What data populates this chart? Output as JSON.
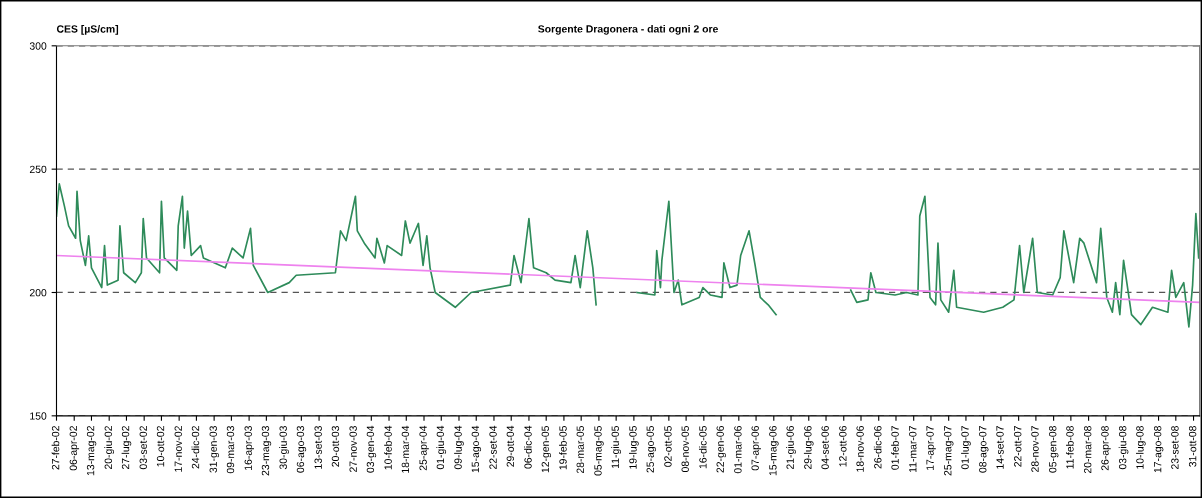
{
  "chart_data": {
    "type": "line",
    "title": "Sorgente Dragonera - dati ogni 2 ore",
    "ylabel": "CES [µS/cm]",
    "ylim": [
      150,
      300
    ],
    "yticks": [
      150,
      200,
      250,
      300
    ],
    "grid": "y",
    "xlim": [
      "2002-02-27",
      "2008-11-13"
    ],
    "xticks": [
      {
        "value": "2002-02-27",
        "label": "27-feb-02"
      },
      {
        "value": "2002-04-06",
        "label": "06-apr-02"
      },
      {
        "value": "2002-05-13",
        "label": "13-mag-02"
      },
      {
        "value": "2002-06-20",
        "label": "20-giu-02"
      },
      {
        "value": "2002-07-27",
        "label": "27-lug-02"
      },
      {
        "value": "2002-09-03",
        "label": "03-set-02"
      },
      {
        "value": "2002-10-10",
        "label": "10-ott-02"
      },
      {
        "value": "2002-11-17",
        "label": "17-nov-02"
      },
      {
        "value": "2002-12-24",
        "label": "24-dic-02"
      },
      {
        "value": "2003-01-31",
        "label": "31-gen-03"
      },
      {
        "value": "2003-03-09",
        "label": "09-mar-03"
      },
      {
        "value": "2003-04-16",
        "label": "16-apr-03"
      },
      {
        "value": "2003-05-23",
        "label": "23-mag-03"
      },
      {
        "value": "2003-06-30",
        "label": "30-giu-03"
      },
      {
        "value": "2003-08-06",
        "label": "06-ago-03"
      },
      {
        "value": "2003-09-13",
        "label": "13-set-03"
      },
      {
        "value": "2003-10-20",
        "label": "20-ott-03"
      },
      {
        "value": "2003-11-27",
        "label": "27-nov-03"
      },
      {
        "value": "2004-01-03",
        "label": "03-gen-04"
      },
      {
        "value": "2004-02-10",
        "label": "10-feb-04"
      },
      {
        "value": "2004-03-18",
        "label": "18-mar-04"
      },
      {
        "value": "2004-04-25",
        "label": "25-apr-04"
      },
      {
        "value": "2004-06-01",
        "label": "01-giu-04"
      },
      {
        "value": "2004-07-09",
        "label": "09-lug-04"
      },
      {
        "value": "2004-08-15",
        "label": "15-ago-04"
      },
      {
        "value": "2004-09-22",
        "label": "22-set-04"
      },
      {
        "value": "2004-10-29",
        "label": "29-ott-04"
      },
      {
        "value": "2004-12-06",
        "label": "06-dic-04"
      },
      {
        "value": "2005-01-12",
        "label": "12-gen-05"
      },
      {
        "value": "2005-02-19",
        "label": "19-feb-05"
      },
      {
        "value": "2005-03-28",
        "label": "28-mar-05"
      },
      {
        "value": "2005-05-05",
        "label": "05-mag-05"
      },
      {
        "value": "2005-06-11",
        "label": "11-giu-05"
      },
      {
        "value": "2005-07-19",
        "label": "19-lug-05"
      },
      {
        "value": "2005-08-25",
        "label": "25-ago-05"
      },
      {
        "value": "2005-10-02",
        "label": "02-ott-05"
      },
      {
        "value": "2005-11-08",
        "label": "08-nov-05"
      },
      {
        "value": "2005-12-16",
        "label": "16-dic-05"
      },
      {
        "value": "2006-01-22",
        "label": "22-gen-06"
      },
      {
        "value": "2006-03-01",
        "label": "01-mar-06"
      },
      {
        "value": "2006-04-07",
        "label": "07-apr-06"
      },
      {
        "value": "2006-05-15",
        "label": "15-mag-06"
      },
      {
        "value": "2006-06-21",
        "label": "21-giu-06"
      },
      {
        "value": "2006-07-29",
        "label": "29-lug-06"
      },
      {
        "value": "2006-09-04",
        "label": "04-set-06"
      },
      {
        "value": "2006-10-12",
        "label": "12-ott-06"
      },
      {
        "value": "2006-11-18",
        "label": "18-nov-06"
      },
      {
        "value": "2006-12-26",
        "label": "26-dic-06"
      },
      {
        "value": "2007-02-01",
        "label": "01-feb-07"
      },
      {
        "value": "2007-03-11",
        "label": "11-mar-07"
      },
      {
        "value": "2007-04-17",
        "label": "17-apr-07"
      },
      {
        "value": "2007-05-25",
        "label": "25-mag-07"
      },
      {
        "value": "2007-07-01",
        "label": "01-lug-07"
      },
      {
        "value": "2007-08-08",
        "label": "08-ago-07"
      },
      {
        "value": "2007-09-14",
        "label": "14-set-07"
      },
      {
        "value": "2007-10-22",
        "label": "22-ott-07"
      },
      {
        "value": "2007-11-28",
        "label": "28-nov-07"
      },
      {
        "value": "2008-01-05",
        "label": "05-gen-08"
      },
      {
        "value": "2008-02-11",
        "label": "11-feb-08"
      },
      {
        "value": "2008-03-20",
        "label": "20-mar-08"
      },
      {
        "value": "2008-04-26",
        "label": "26-apr-08"
      },
      {
        "value": "2008-06-03",
        "label": "03-giu-08"
      },
      {
        "value": "2008-07-10",
        "label": "10-lug-08"
      },
      {
        "value": "2008-08-17",
        "label": "17-ago-08"
      },
      {
        "value": "2008-09-23",
        "label": "23-set-08"
      },
      {
        "value": "2008-10-31",
        "label": "31-ott-08"
      }
    ],
    "series": [
      {
        "color": "#2e8b5a",
        "x": [
          "2002-02-27",
          "2002-03-05",
          "2002-03-16",
          "2002-03-25",
          "2002-04-09",
          "2002-04-12",
          "2002-04-19",
          "2002-04-30",
          "2002-05-07",
          "2002-05-13",
          "2002-06-04",
          "2002-06-10",
          "2002-06-16",
          "2002-07-09",
          "2002-07-13",
          "2002-07-21",
          "2002-08-15",
          "2002-08-28",
          "2002-09-01",
          "2002-09-08",
          "2002-10-06",
          "2002-10-10",
          "2002-10-16",
          "2002-11-12",
          "2002-11-15",
          "2002-11-24",
          "2002-11-28",
          "2002-12-05",
          "2002-12-13",
          "2003-01-02",
          "2003-01-08",
          "2003-02-24",
          "2003-03-11",
          "2003-04-03",
          "2003-04-19",
          "2003-04-25",
          "2003-05-26",
          "2003-07-11",
          "2003-07-26",
          "2003-10-18",
          "2003-10-29",
          "2003-11-10",
          "2003-11-30",
          "2003-12-04",
          "2003-12-19",
          "2004-01-11",
          "2004-01-15",
          "2004-01-31",
          "2004-02-06",
          "2004-03-08",
          "2004-03-16",
          "2004-03-26",
          "2004-04-04",
          "2004-04-13",
          "2004-04-23",
          "2004-05-01",
          "2004-05-08",
          "2004-05-19",
          "2004-07-01",
          "2004-08-04",
          "2004-10-27",
          "2004-11-04",
          "2004-11-19",
          "2004-12-06",
          "2004-12-16",
          "2005-01-12",
          "2005-01-31",
          "2005-03-06",
          "2005-03-15",
          "2005-03-26",
          "2005-04-10",
          "2005-04-22",
          "2005-04-29",
          "2005-06-10",
          "2005-07-26",
          "2005-09-02",
          "2005-09-06",
          "2005-09-14",
          "2005-09-17",
          "2005-10-02",
          "2005-10-13",
          "2005-10-22",
          "2005-10-30",
          "2005-12-06",
          "2005-12-14",
          "2005-12-30",
          "2006-01-24",
          "2006-01-28",
          "2006-02-10",
          "2006-02-25",
          "2006-03-05",
          "2006-03-23",
          "2006-04-05",
          "2006-04-16",
          "2006-05-03",
          "2006-05-20",
          "2006-08-20",
          "2006-10-27",
          "2006-11-09",
          "2006-12-03",
          "2006-12-09",
          "2006-12-20",
          "2007-01-30",
          "2007-02-24",
          "2007-03-20",
          "2007-03-24",
          "2007-04-04",
          "2007-04-10",
          "2007-04-15",
          "2007-04-27",
          "2007-05-02",
          "2007-05-08",
          "2007-05-25",
          "2007-06-05",
          "2007-06-11",
          "2007-08-08",
          "2007-09-18",
          "2007-10-12",
          "2007-10-24",
          "2007-11-02",
          "2007-11-21",
          "2007-12-01",
          "2008-01-03",
          "2008-01-19",
          "2008-01-27",
          "2008-02-17",
          "2008-03-01",
          "2008-03-10",
          "2008-04-06",
          "2008-04-15",
          "2008-04-28",
          "2008-05-10",
          "2008-05-17",
          "2008-05-26",
          "2008-06-03",
          "2008-06-20",
          "2008-07-10",
          "2008-08-04",
          "2008-09-06",
          "2008-09-14",
          "2008-09-23",
          "2008-10-10",
          "2008-10-21",
          "2008-10-29",
          "2008-11-05",
          "2008-11-11"
        ],
        "values": [
          231,
          244,
          235,
          227,
          222,
          241,
          221,
          211,
          223,
          210,
          202,
          219,
          203,
          205,
          227,
          208,
          204,
          208,
          230,
          214,
          208,
          237,
          214,
          209,
          227,
          239,
          218,
          233,
          215,
          219,
          214,
          210,
          218,
          214,
          226,
          211,
          200,
          204,
          207,
          208,
          225,
          221,
          239,
          225,
          220,
          214,
          222,
          212,
          219,
          215,
          229,
          220,
          224,
          228,
          211,
          223,
          210,
          200,
          194,
          200,
          203,
          215,
          204,
          230,
          210,
          208,
          205,
          204,
          215,
          202,
          225,
          210,
          195,
          null,
          200,
          199,
          217,
          202,
          213,
          237,
          200,
          205,
          195,
          198,
          202,
          199,
          198,
          212,
          202,
          203,
          215,
          225,
          211,
          198,
          195,
          191,
          null,
          201,
          196,
          197,
          208,
          200,
          199,
          200,
          199,
          231,
          239,
          217,
          198,
          195,
          220,
          197,
          192,
          209,
          194,
          192,
          194,
          197,
          219,
          200,
          222,
          200,
          199,
          206,
          225,
          204,
          222,
          220,
          204,
          226,
          198,
          192,
          204,
          191,
          213,
          191,
          187,
          194,
          192,
          209,
          198,
          204,
          186,
          203,
          232,
          214
        ]
      },
      {
        "color": "#ee82ee",
        "x": [
          "2002-02-27",
          "2008-11-13"
        ],
        "values": [
          215,
          196
        ]
      }
    ]
  }
}
